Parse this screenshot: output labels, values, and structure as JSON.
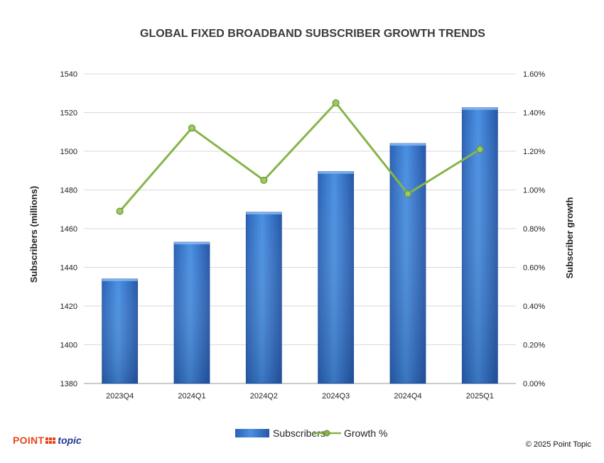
{
  "chart_data": {
    "type": "bar",
    "title": "GLOBAL FIXED BROADBAND SUBSCRIBER GROWTH TRENDS",
    "categories": [
      "2023Q4",
      "2024Q1",
      "2024Q2",
      "2024Q3",
      "2024Q4",
      "2025Q1"
    ],
    "series": [
      {
        "name": "Subscribers",
        "type": "bar",
        "axis": "left",
        "color": "#3a7fd5",
        "values": [
          1434,
          1453,
          1468.5,
          1489.5,
          1504,
          1522.5
        ]
      },
      {
        "name": "Growth %",
        "type": "line",
        "axis": "right",
        "color": "#86b548",
        "values": [
          0.89,
          1.32,
          1.05,
          1.45,
          0.98,
          1.21
        ]
      }
    ],
    "ylabel": "Subscribers (millions)",
    "y2label": "Subscriber growth",
    "ylim": [
      1380,
      1540
    ],
    "y2lim": [
      0,
      1.6
    ],
    "yticks": [
      "1380",
      "1400",
      "1420",
      "1440",
      "1460",
      "1480",
      "1500",
      "1520",
      "1540"
    ],
    "y2ticks": [
      "0.00%",
      "0.20%",
      "0.40%",
      "0.60%",
      "0.80%",
      "1.00%",
      "1.20%",
      "1.40%",
      "1.60%"
    ],
    "grid": true,
    "legend_position": "bottom"
  },
  "branding": {
    "logo_text_left": "POINT",
    "logo_text_right": "topic",
    "copyright": "© 2025 Point Topic"
  }
}
